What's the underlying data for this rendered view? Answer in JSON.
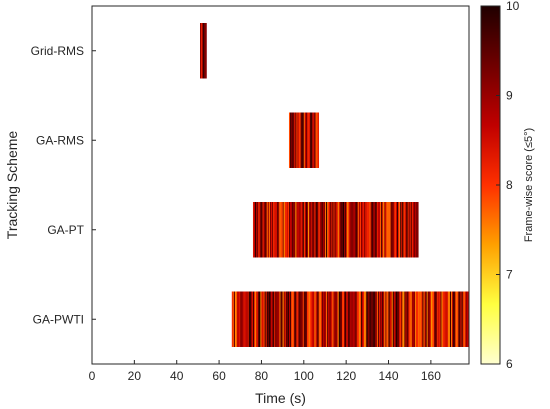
{
  "chart_data": {
    "type": "heatmap",
    "title": "",
    "xlabel": "Time (s)",
    "ylabel": "Tracking Scheme",
    "xlim": [
      0,
      178
    ],
    "x_ticks": [
      "0",
      "20",
      "40",
      "60",
      "80",
      "100",
      "120",
      "140",
      "160"
    ],
    "x_tick_values": [
      0,
      20,
      40,
      60,
      80,
      100,
      120,
      140,
      160
    ],
    "categories": [
      "Grid-RMS",
      "GA-RMS",
      "GA-PT",
      "GA-PWTI"
    ],
    "series": [
      {
        "name": "Grid-RMS",
        "x_start": 51,
        "x_end": 54
      },
      {
        "name": "GA-RMS",
        "x_start": 93,
        "x_end": 107
      },
      {
        "name": "GA-PT",
        "x_start": 76,
        "x_end": 154
      },
      {
        "name": "GA-PWTI",
        "x_start": 66,
        "x_end": 178
      }
    ],
    "colorbar": {
      "label": "Frame-wise score (≤5°)",
      "min": 6,
      "max": 10,
      "ticks": [
        "6",
        "7",
        "8",
        "9",
        "10"
      ],
      "tick_values": [
        6,
        7,
        8,
        9,
        10
      ],
      "colormap": "hot (reversed)",
      "colors": [
        "#ffffd0",
        "#ffff40",
        "#ffa000",
        "#ff3000",
        "#c00000",
        "#700000",
        "#200000"
      ]
    },
    "grid": false
  }
}
